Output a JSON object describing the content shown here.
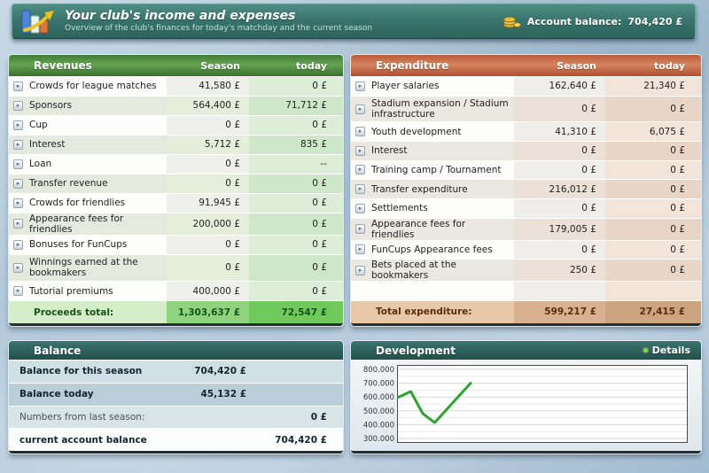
{
  "header": {
    "title": "Your club's income and expenses",
    "subtitle": "Overview of the club's finances for today's matchday and the current season",
    "account_balance_label": "Account balance:",
    "account_balance_value": "704,420 £"
  },
  "icons": {
    "row_detail": "▸"
  },
  "revenues": {
    "title": "Revenues",
    "col_season": "Season",
    "col_today": "today",
    "rows": [
      {
        "label": "Crowds for league matches",
        "season": "41,580 £",
        "today": "0 £"
      },
      {
        "label": "Sponsors",
        "season": "564,400 £",
        "today": "71,712 £"
      },
      {
        "label": "Cup",
        "season": "0 £",
        "today": "0 £"
      },
      {
        "label": "Interest",
        "season": "5,712 £",
        "today": "835 £"
      },
      {
        "label": "Loan",
        "season": "0 £",
        "today": "--"
      },
      {
        "label": "Transfer revenue",
        "season": "0 £",
        "today": "0 £"
      },
      {
        "label": "Crowds for friendlies",
        "season": "91,945 £",
        "today": "0 £"
      },
      {
        "label": "Appearance fees for friendlies",
        "season": "200,000 £",
        "today": "0 £"
      },
      {
        "label": "Bonuses for FunCups",
        "season": "0 £",
        "today": "0 £"
      },
      {
        "label": "Winnings earned at the bookmakers",
        "season": "0 £",
        "today": "0 £"
      },
      {
        "label": "Tutorial premiums",
        "season": "400,000 £",
        "today": "0 £"
      }
    ],
    "total": {
      "label": "Proceeds total:",
      "season": "1,303,637 £",
      "today": "72,547 £"
    }
  },
  "expenditure": {
    "title": "Expenditure",
    "col_season": "Season",
    "col_today": "today",
    "rows": [
      {
        "label": "Player salaries",
        "season": "162,640 £",
        "today": "21,340 £"
      },
      {
        "label": "Stadium expansion / Stadium infrastructure",
        "season": "0 £",
        "today": "0 £"
      },
      {
        "label": "Youth development",
        "season": "41,310 £",
        "today": "6,075 £"
      },
      {
        "label": "Interest",
        "season": "0 £",
        "today": "0 £"
      },
      {
        "label": "Training camp / Tournament",
        "season": "0 £",
        "today": "0 £"
      },
      {
        "label": "Transfer expenditure",
        "season": "216,012 £",
        "today": "0 £"
      },
      {
        "label": "Settlements",
        "season": "0 £",
        "today": "0 £"
      },
      {
        "label": "Appearance fees for friendlies",
        "season": "179,005 £",
        "today": "0 £"
      },
      {
        "label": "FunCups Appearance fees",
        "season": "0 £",
        "today": "0 £"
      },
      {
        "label": "Bets placed at the bookmakers",
        "season": "250 £",
        "today": "0 £"
      }
    ],
    "total": {
      "label": "Total expenditure:",
      "season": "599,217 £",
      "today": "27,415 £"
    }
  },
  "balance": {
    "title": "Balance",
    "rows": [
      {
        "label": "Balance for this season",
        "value": "704,420 £"
      },
      {
        "label": "Balance today",
        "value": "45,132 £"
      },
      {
        "label": "Numbers from last season:",
        "value": "0 £"
      },
      {
        "label": "current account balance",
        "value": "704,420 £"
      }
    ]
  },
  "development": {
    "title": "Development",
    "details_label": "Details"
  },
  "chart_data": {
    "type": "line",
    "title": "Development",
    "x": [
      1,
      2,
      3,
      4,
      5,
      6,
      7
    ],
    "values": [
      600000,
      640000,
      480000,
      415000,
      510000,
      605000,
      700000
    ],
    "ylim": [
      300000,
      800000
    ],
    "ytick_labels": [
      "800.000",
      "700.000",
      "600.000",
      "500.000",
      "400.000",
      "300.000"
    ],
    "xlabel": "",
    "ylabel": "",
    "grid": true,
    "legend": "none",
    "line_color": "#2fa32f"
  }
}
